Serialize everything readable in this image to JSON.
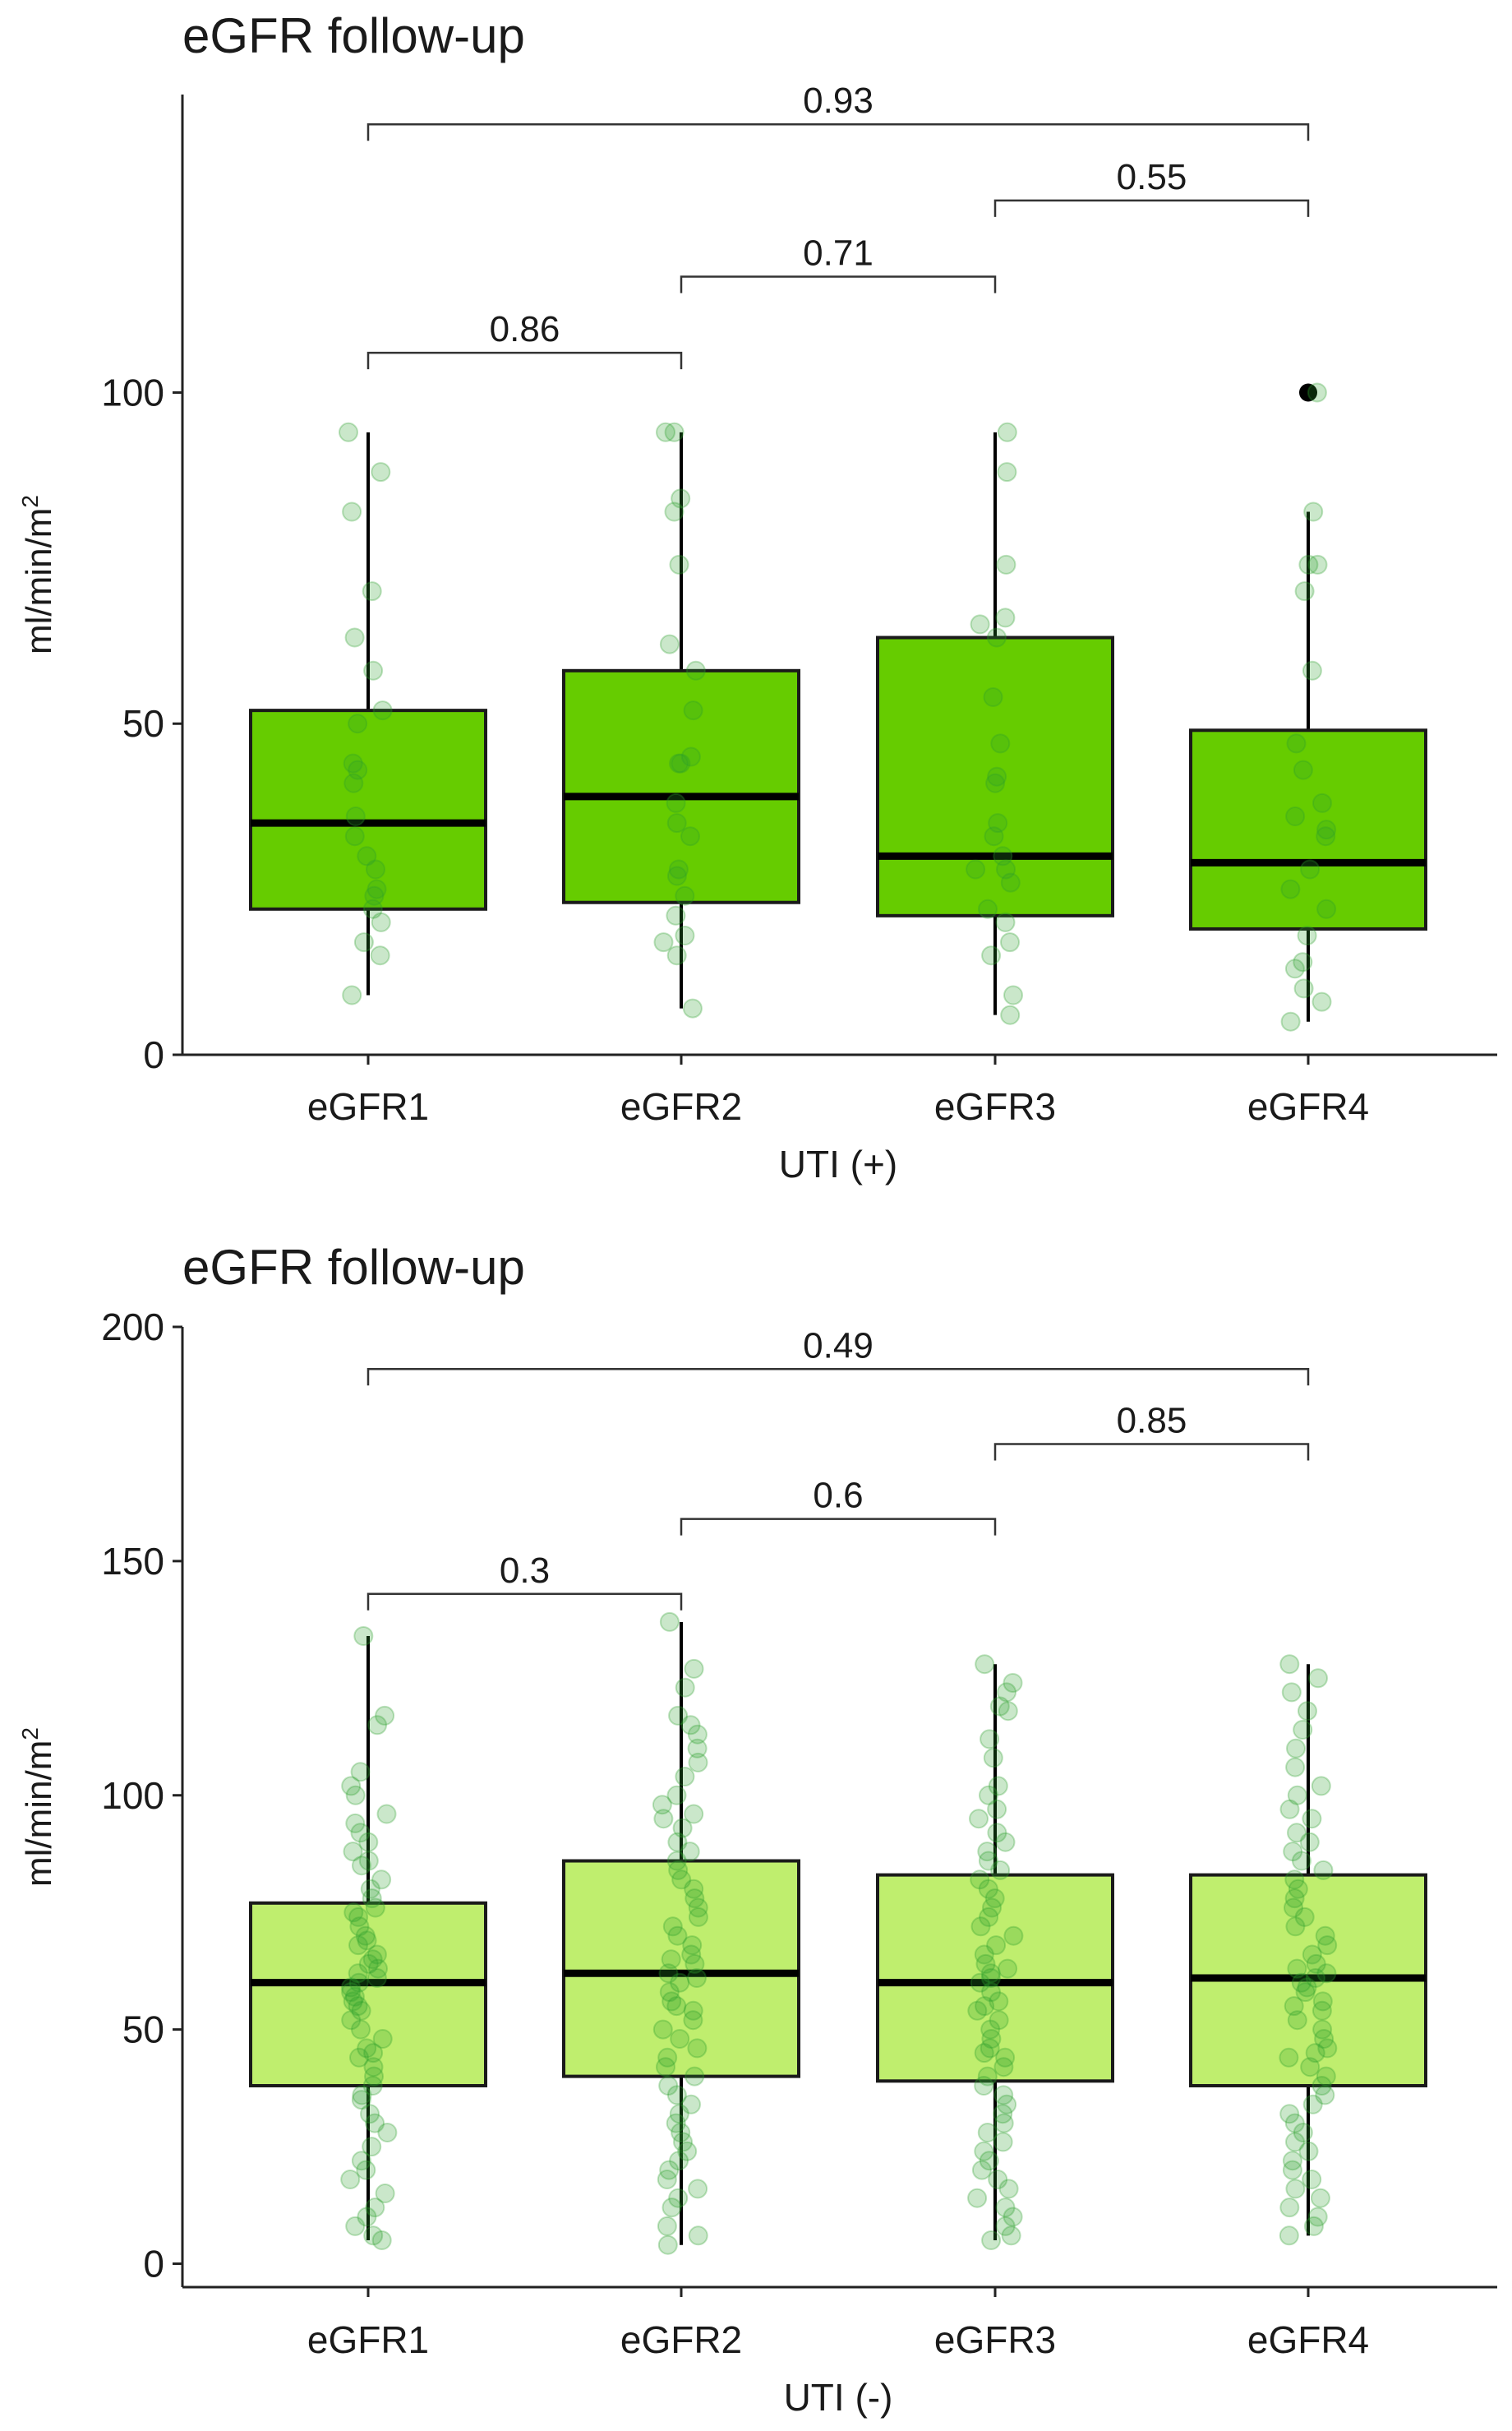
{
  "chart_data": [
    {
      "type": "box",
      "title": "eGFR follow-up",
      "xlabel": "UTI (+)",
      "ylabel": "ml/min/m",
      "ylabel_sup": "2",
      "ylim": [
        0,
        145
      ],
      "yticks": [
        0,
        50,
        100
      ],
      "ytick_labels": [
        "0",
        "50",
        "100"
      ],
      "categories": [
        "eGFR1",
        "eGFR2",
        "eGFR3",
        "eGFR4"
      ],
      "box_color": "#66cc00",
      "point_color": "#2ca02c",
      "boxes": [
        {
          "name": "eGFR1",
          "q1": 22,
          "median": 35,
          "q3": 52,
          "whisker_low": 9,
          "whisker_high": 94,
          "outliers": []
        },
        {
          "name": "eGFR2",
          "q1": 23,
          "median": 39,
          "q3": 58,
          "whisker_low": 7,
          "whisker_high": 94,
          "outliers": []
        },
        {
          "name": "eGFR3",
          "q1": 21,
          "median": 30,
          "q3": 63,
          "whisker_low": 6,
          "whisker_high": 94,
          "outliers": []
        },
        {
          "name": "eGFR4",
          "q1": 19,
          "median": 29,
          "q3": 49,
          "whisker_low": 5,
          "whisker_high": 82,
          "outliers": [
            100
          ]
        }
      ],
      "points": [
        [
          94,
          88,
          82,
          70,
          63,
          58,
          52,
          50,
          44,
          43,
          41,
          36,
          33,
          30,
          28,
          25,
          24,
          22,
          20,
          17,
          15,
          9
        ],
        [
          94,
          94,
          84,
          82,
          74,
          62,
          58,
          52,
          45,
          44,
          44,
          38,
          35,
          33,
          28,
          27,
          24,
          21,
          18,
          17,
          15,
          7
        ],
        [
          94,
          88,
          74,
          66,
          65,
          63,
          54,
          47,
          42,
          41,
          35,
          33,
          30,
          28,
          28,
          26,
          22,
          20,
          17,
          15,
          9,
          6
        ],
        [
          100,
          82,
          74,
          74,
          70,
          58,
          47,
          43,
          38,
          36,
          34,
          33,
          28,
          25,
          22,
          18,
          14,
          13,
          10,
          8,
          5
        ]
      ],
      "comparisons": [
        {
          "from": "eGFR1",
          "to": "eGFR2",
          "p": "0.86",
          "y": 106
        },
        {
          "from": "eGFR2",
          "to": "eGFR3",
          "p": "0.71",
          "y": 117.5
        },
        {
          "from": "eGFR3",
          "to": "eGFR4",
          "p": "0.55",
          "y": 129
        },
        {
          "from": "eGFR1",
          "to": "eGFR4",
          "p": "0.93",
          "y": 140.5
        }
      ]
    },
    {
      "type": "box",
      "title": "eGFR follow-up",
      "xlabel": "UTI (-)",
      "ylabel": "ml/min/m",
      "ylabel_sup": "2",
      "ylim": [
        -5,
        200
      ],
      "yticks": [
        0,
        50,
        100,
        150,
        200
      ],
      "ytick_labels": [
        "0",
        "50",
        "100",
        "150",
        "200"
      ],
      "categories": [
        "eGFR1",
        "eGFR2",
        "eGFR3",
        "eGFR4"
      ],
      "box_color": "#bfee6e",
      "point_color": "#2ca02c",
      "boxes": [
        {
          "name": "eGFR1",
          "q1": 38,
          "median": 60,
          "q3": 77,
          "whisker_low": 5,
          "whisker_high": 134,
          "outliers": []
        },
        {
          "name": "eGFR2",
          "q1": 40,
          "median": 62,
          "q3": 86,
          "whisker_low": 4,
          "whisker_high": 137,
          "outliers": []
        },
        {
          "name": "eGFR3",
          "q1": 39,
          "median": 60,
          "q3": 83,
          "whisker_low": 5,
          "whisker_high": 128,
          "outliers": []
        },
        {
          "name": "eGFR4",
          "q1": 38,
          "median": 61,
          "q3": 83,
          "whisker_low": 6,
          "whisker_high": 128,
          "outliers": []
        }
      ],
      "points": [
        [
          134,
          117,
          115,
          105,
          102,
          100,
          96,
          94,
          92,
          90,
          88,
          86,
          85,
          82,
          80,
          78,
          76,
          75,
          74,
          72,
          70,
          69,
          68,
          66,
          65,
          64,
          63,
          62,
          61,
          60,
          59,
          58,
          57,
          56,
          55,
          54,
          52,
          50,
          48,
          46,
          45,
          44,
          42,
          40,
          38,
          36,
          35,
          32,
          30,
          28,
          25,
          22,
          20,
          18,
          15,
          12,
          10,
          8,
          6,
          5
        ],
        [
          137,
          127,
          123,
          117,
          115,
          113,
          110,
          107,
          104,
          100,
          98,
          96,
          95,
          93,
          90,
          88,
          86,
          84,
          82,
          80,
          78,
          76,
          74,
          72,
          70,
          68,
          66,
          65,
          64,
          62,
          61,
          60,
          58,
          56,
          55,
          54,
          52,
          50,
          48,
          46,
          44,
          42,
          40,
          38,
          36,
          34,
          32,
          30,
          28,
          26,
          24,
          22,
          20,
          18,
          16,
          14,
          12,
          8,
          6,
          4
        ],
        [
          128,
          124,
          122,
          119,
          118,
          112,
          108,
          102,
          100,
          97,
          95,
          92,
          90,
          88,
          86,
          84,
          82,
          80,
          78,
          76,
          74,
          72,
          70,
          68,
          66,
          64,
          63,
          62,
          61,
          60,
          58,
          56,
          55,
          54,
          52,
          50,
          48,
          46,
          45,
          44,
          42,
          40,
          38,
          36,
          34,
          32,
          30,
          28,
          26,
          24,
          22,
          20,
          18,
          16,
          14,
          12,
          10,
          8,
          6,
          5
        ],
        [
          128,
          125,
          122,
          118,
          114,
          110,
          106,
          102,
          100,
          97,
          95,
          92,
          90,
          88,
          86,
          84,
          82,
          80,
          78,
          76,
          74,
          72,
          70,
          68,
          66,
          64,
          63,
          62,
          61,
          60,
          59,
          58,
          56,
          55,
          54,
          52,
          50,
          48,
          46,
          45,
          44,
          42,
          40,
          38,
          36,
          34,
          32,
          30,
          28,
          26,
          24,
          22,
          20,
          18,
          16,
          14,
          12,
          10,
          8,
          6
        ]
      ],
      "comparisons": [
        {
          "from": "eGFR1",
          "to": "eGFR2",
          "p": "0.3",
          "y": 143
        },
        {
          "from": "eGFR2",
          "to": "eGFR3",
          "p": "0.6",
          "y": 159
        },
        {
          "from": "eGFR3",
          "to": "eGFR4",
          "p": "0.85",
          "y": 175
        },
        {
          "from": "eGFR1",
          "to": "eGFR4",
          "p": "0.49",
          "y": 191
        }
      ]
    }
  ]
}
